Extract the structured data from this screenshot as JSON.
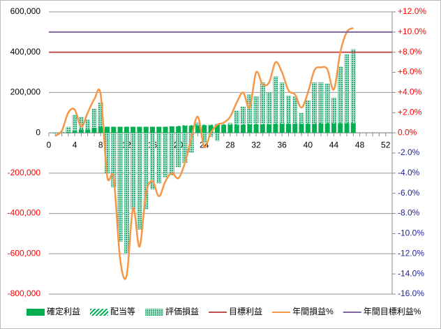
{
  "chart_data": {
    "type": "combo",
    "x": [
      1,
      2,
      3,
      4,
      5,
      6,
      7,
      8,
      9,
      10,
      11,
      12,
      13,
      14,
      15,
      16,
      17,
      18,
      19,
      20,
      21,
      22,
      23,
      24,
      25,
      26,
      27,
      28,
      29,
      30,
      31,
      32,
      33,
      34,
      35,
      36,
      37,
      38,
      39,
      40,
      41,
      42,
      43,
      44,
      45,
      46,
      47
    ],
    "xlim": [
      0,
      53
    ],
    "xticks": [
      0,
      4,
      8,
      12,
      16,
      20,
      24,
      28,
      32,
      36,
      40,
      44,
      48,
      52
    ],
    "ylim": [
      -800000,
      600000
    ],
    "yticks": [
      {
        "value": -800000,
        "label": "-800,000"
      },
      {
        "value": -600000,
        "label": "-600,000"
      },
      {
        "value": -400000,
        "label": "-400,000"
      },
      {
        "value": -200000,
        "label": "-200,000"
      },
      0,
      {
        "value": 200000,
        "label": "200,000"
      },
      {
        "value": 400000,
        "label": "400,000"
      },
      {
        "value": 600000,
        "label": "600,000"
      }
    ],
    "y2lim": [
      -16,
      12
    ],
    "y2ticks": [
      {
        "value": -16,
        "label": "-16.0%"
      },
      {
        "value": -14,
        "label": "-14.0%"
      },
      {
        "value": -12,
        "label": "-12.0%"
      },
      {
        "value": -10,
        "label": "-10.0%"
      },
      {
        "value": -8,
        "label": "-8.0%"
      },
      {
        "value": -6,
        "label": "-6.0%"
      },
      {
        "value": -4,
        "label": "-4.0%"
      },
      {
        "value": -2,
        "label": "-2.0%"
      },
      {
        "value": 0,
        "label": "0.0%"
      },
      {
        "value": 2,
        "label": "+2.0%"
      },
      {
        "value": 4,
        "label": "+4.0%"
      },
      {
        "value": 6,
        "label": "+6.0%"
      },
      {
        "value": 8,
        "label": "+8.0%"
      },
      {
        "value": 10,
        "label": "+10.0%"
      },
      {
        "value": 12,
        "label": "+12.0%"
      }
    ],
    "grid": true,
    "series": [
      {
        "name": "確定利益",
        "color": "#00b050",
        "style": "bar",
        "values": [
          0,
          0,
          5000,
          10000,
          17000,
          17000,
          25000,
          30000,
          30000,
          30000,
          30000,
          30000,
          30000,
          30000,
          30000,
          30000,
          30000,
          30000,
          32000,
          32000,
          35000,
          35000,
          38000,
          38000,
          38000,
          40000,
          40000,
          40000,
          40000,
          40000,
          42000,
          42000,
          42000,
          42000,
          45000,
          45000,
          45000,
          45000,
          45000,
          45000,
          45000,
          47000,
          47000,
          47000,
          48000,
          48000,
          48000
        ]
      },
      {
        "name": "配当等",
        "color": "#00b050",
        "style": "hatch-bar",
        "values": [
          0,
          0,
          0,
          0,
          0,
          0,
          0,
          0,
          0,
          0,
          0,
          0,
          0,
          0,
          0,
          0,
          0,
          0,
          0,
          3000,
          3000,
          3000,
          3000,
          3000,
          3000,
          3000,
          3000,
          3000,
          3000,
          3000,
          3000,
          3000,
          3000,
          3000,
          3000,
          3000,
          3000,
          3000,
          3000,
          3000,
          3000,
          3000,
          3000,
          3000,
          3000,
          3000,
          3000
        ]
      },
      {
        "name": "評価損益",
        "color": "#2aa876",
        "style": "dot-bar",
        "values": [
          -5000,
          5000,
          25000,
          80000,
          63000,
          48000,
          95000,
          120000,
          -200000,
          -270000,
          -540000,
          -600000,
          -380000,
          -480000,
          -380000,
          -280000,
          -250000,
          -220000,
          -210000,
          -170000,
          -150000,
          -100000,
          10000,
          -50000,
          -20000,
          -40000,
          0,
          7000,
          67000,
          87000,
          145000,
          135000,
          205000,
          155000,
          232000,
          202000,
          137000,
          132000,
          52000,
          112000,
          202000,
          200000,
          195000,
          125000,
          279000,
          339000,
          364000
        ]
      },
      {
        "name": "目標利益",
        "color": "#c0504d",
        "style": "hline",
        "value": 400000
      },
      {
        "name": "年間損益%",
        "color": "#f79646",
        "style": "line",
        "axis": "y2",
        "values": [
          -0.3,
          0.2,
          2.0,
          2.3,
          0.6,
          2.0,
          3.3,
          3.8,
          -4.3,
          -4.5,
          -12.5,
          -14.2,
          -7.5,
          -11.3,
          -6.0,
          -4.8,
          -6.3,
          -4.8,
          -4.0,
          -4.5,
          -3.0,
          -0.5,
          1.6,
          -1.4,
          0.0,
          0.8,
          1.0,
          1.6,
          3.0,
          4.0,
          2.5,
          6.0,
          4.8,
          5.0,
          7.0,
          6.0,
          4.2,
          3.8,
          2.5,
          4.0,
          6.2,
          6.5,
          6.3,
          4.3,
          8.0,
          10.0,
          10.4
        ]
      },
      {
        "name": "年間目標利益%",
        "color": "#8064a2",
        "style": "hline",
        "axis": "y2",
        "value": 10
      }
    ]
  }
}
